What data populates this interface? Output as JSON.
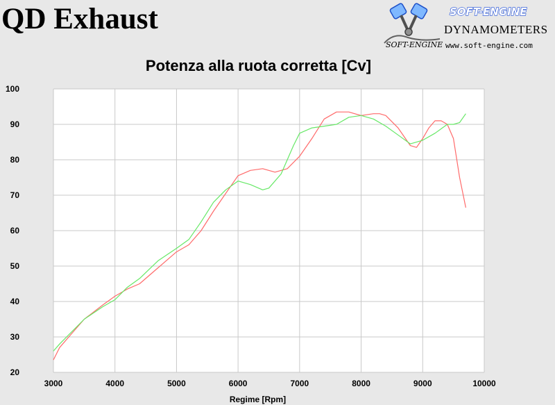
{
  "header": {
    "title": "QD Exhaust",
    "logo": {
      "brand": "SOFT-ENGINE",
      "subtitle": "DYNAMOMETERS",
      "signature": "SOFT-ENGINE",
      "url": "www.soft-engine.com",
      "icon": "twin-piston-icon"
    }
  },
  "colors": {
    "background": "#e8e8e8",
    "plot_background": "#ffffff",
    "grid": "#c8c8c8",
    "series_red": "#ff6a6a",
    "series_green": "#66e866"
  },
  "chart_data": {
    "type": "line",
    "title": "Potenza alla ruota corretta [Cv]",
    "xlabel": "Regime [Rpm]",
    "ylabel": "",
    "xlim": [
      3000,
      10000
    ],
    "ylim": [
      20,
      100
    ],
    "x_ticks": [
      "3000",
      "4000",
      "5000",
      "6000",
      "7000",
      "8000",
      "9000",
      "10000"
    ],
    "y_ticks": [
      "20",
      "30",
      "40",
      "50",
      "60",
      "70",
      "80",
      "90",
      "100"
    ],
    "grid": true,
    "series": [
      {
        "color": "#ff6a6a",
        "x": [
          3000,
          3100,
          3300,
          3500,
          3800,
          4000,
          4200,
          4400,
          4700,
          5000,
          5200,
          5400,
          5600,
          5800,
          6000,
          6200,
          6400,
          6600,
          6800,
          7000,
          7200,
          7400,
          7600,
          7800,
          8000,
          8200,
          8300,
          8400,
          8600,
          8800,
          8900,
          9000,
          9100,
          9200,
          9300,
          9400,
          9500,
          9600,
          9700
        ],
        "y": [
          23.5,
          27,
          31,
          35,
          39,
          41.5,
          43.5,
          45,
          49.5,
          54,
          56,
          60,
          65.5,
          70.5,
          75.5,
          77,
          77.5,
          76.5,
          77.5,
          81,
          86,
          91.5,
          93.5,
          93.5,
          92.5,
          93,
          93,
          92.5,
          89,
          84,
          83.5,
          86,
          89,
          91,
          91,
          90,
          86,
          75,
          66.5
        ]
      },
      {
        "color": "#66e866",
        "x": [
          3000,
          3100,
          3300,
          3500,
          3800,
          4000,
          4200,
          4400,
          4700,
          5000,
          5200,
          5400,
          5600,
          5800,
          6000,
          6200,
          6400,
          6500,
          6700,
          6900,
          7000,
          7200,
          7400,
          7600,
          7800,
          8000,
          8200,
          8400,
          8600,
          8800,
          9000,
          9200,
          9400,
          9500,
          9600,
          9700
        ],
        "y": [
          26,
          28,
          31.5,
          35,
          38.5,
          40.5,
          44,
          46.5,
          51.5,
          55,
          57.5,
          62.5,
          68,
          71.5,
          74,
          73,
          71.5,
          72,
          76,
          84,
          87.5,
          89,
          89.5,
          90,
          92,
          92.5,
          91.5,
          89.5,
          87,
          84.5,
          85.5,
          87.5,
          90,
          90,
          90.5,
          93
        ]
      }
    ]
  }
}
